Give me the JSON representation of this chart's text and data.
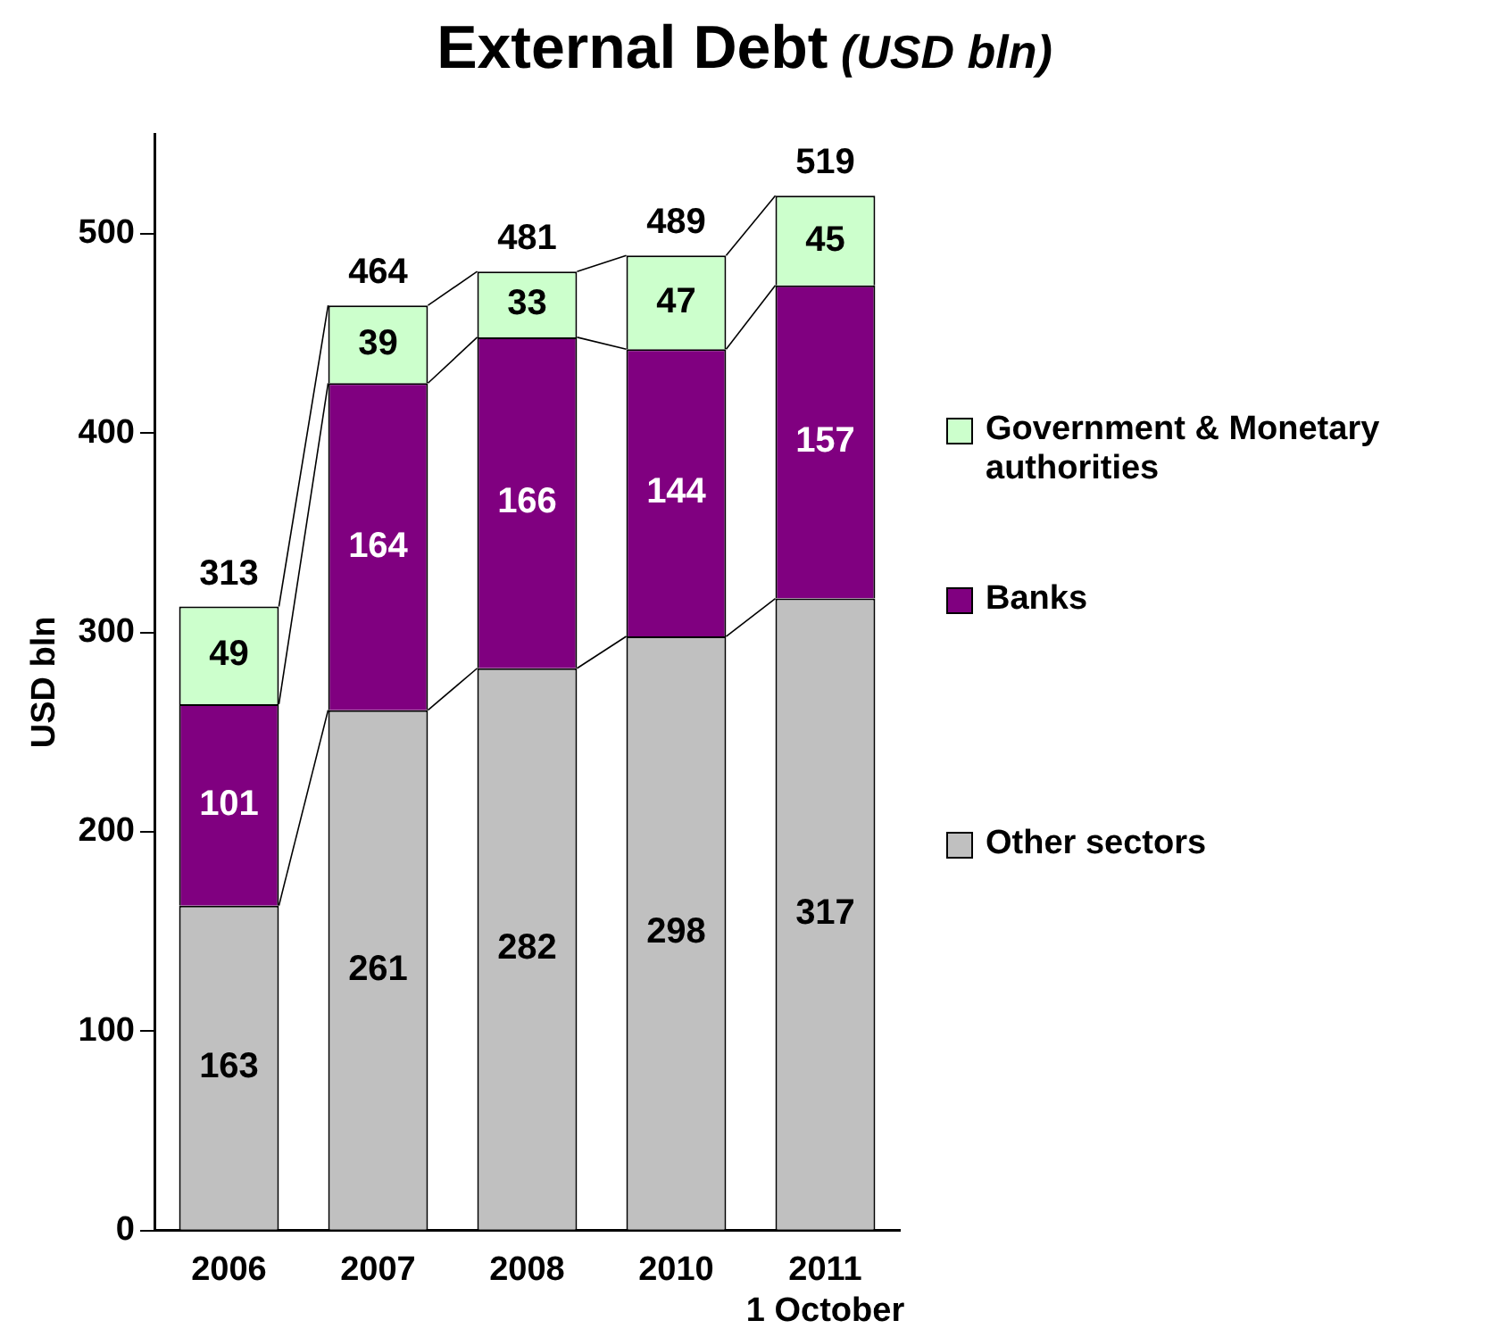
{
  "chart_data": {
    "type": "bar",
    "title": "External Debt",
    "subtitle": "(USD bln)",
    "ylabel": "USD bln",
    "categories": [
      "2006",
      "2007",
      "2008",
      "2010",
      "2011\n1 October"
    ],
    "stacked": true,
    "data_labels": true,
    "legend": "right",
    "grid": false,
    "ylim": [
      0,
      550
    ],
    "yticks": [
      0,
      100,
      200,
      300,
      400,
      500
    ],
    "totals": [
      "313",
      "464",
      "481",
      "489",
      "519"
    ],
    "series": [
      {
        "name": "Other sectors",
        "color": "#c0c0c0",
        "values": [
          163,
          261,
          282,
          298,
          317
        ]
      },
      {
        "name": "Banks",
        "color": "#800080",
        "values": [
          101,
          164,
          166,
          144,
          157
        ]
      },
      {
        "name": "Government & Monetary authorities",
        "color": "#ccffcc",
        "values": [
          49,
          39,
          33,
          47,
          45
        ]
      }
    ]
  }
}
